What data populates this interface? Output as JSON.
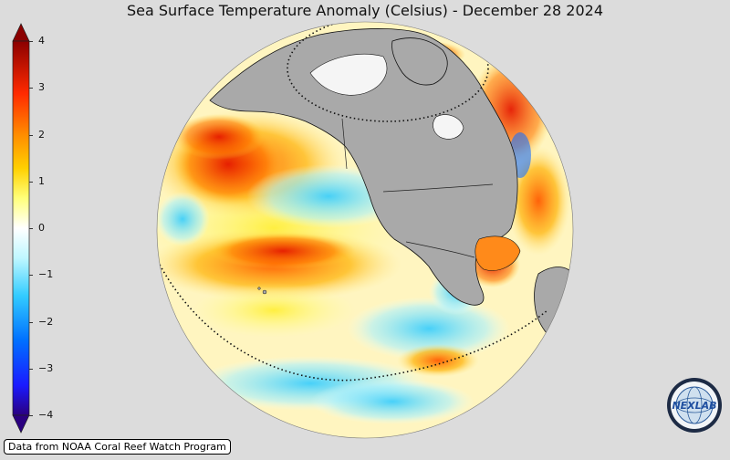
{
  "title": "Sea Surface Temperature Anomaly (Celsius) - December 28 2024",
  "colorbar": {
    "ticks": [
      {
        "value": 4,
        "label": "4"
      },
      {
        "value": 3,
        "label": "3"
      },
      {
        "value": 2,
        "label": "2"
      },
      {
        "value": 1,
        "label": "1"
      },
      {
        "value": 0,
        "label": "0"
      },
      {
        "value": -1,
        "label": "−1"
      },
      {
        "value": -2,
        "label": "−2"
      },
      {
        "value": -3,
        "label": "−3"
      },
      {
        "value": -4,
        "label": "−4"
      }
    ],
    "range": [
      -4,
      4
    ],
    "colors": [
      "#2a0080",
      "#0000ff",
      "#00aaff",
      "#aaffff",
      "#ffffff",
      "#ffff66",
      "#ffaa00",
      "#ff3300",
      "#b30000",
      "#800000"
    ]
  },
  "map": {
    "projection": "orthographic",
    "ocean_base_color": "#fff7c8",
    "land_color": "#a9a9a9",
    "background_color": "#dcdcdc"
  },
  "credit": "Data from NOAA Coral Reef Watch Program",
  "logo": {
    "text": "NEXLAB",
    "icon": "globe-logo"
  }
}
